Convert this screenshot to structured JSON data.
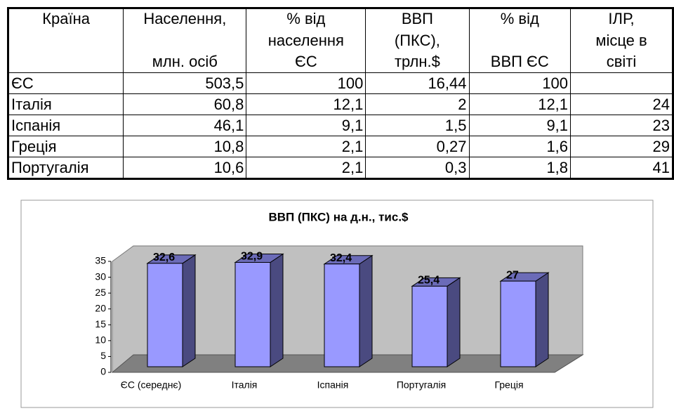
{
  "table": {
    "header": [
      [
        "Країна"
      ],
      [
        "Населення,",
        "млн. осіб"
      ],
      [
        "% від",
        "населення",
        "ЄС"
      ],
      [
        "ВВП",
        "(ПКС),",
        "трлн.$"
      ],
      [
        "% від",
        "ВВП ЄС"
      ],
      [
        "ІЛР,",
        "місце в",
        "світі"
      ]
    ],
    "rows": [
      [
        "ЄС",
        "503,5",
        "100",
        "16,44",
        "100",
        null
      ],
      [
        "Італія",
        "60,8",
        "12,1",
        "2",
        "12,1",
        "24"
      ],
      [
        "Іспанія",
        "46,1",
        "9,1",
        "1,5",
        "9,1",
        "23"
      ],
      [
        "Греція",
        "10,8",
        "2,1",
        "0,27",
        "1,6",
        "29"
      ],
      [
        "Португалія",
        "10,6",
        "2,1",
        "0,3",
        "1,8",
        "41"
      ]
    ]
  },
  "chart_data": {
    "type": "bar3d",
    "title": "ВВП (ПКС) на д.н., тис.$",
    "categories": [
      "ЄС (середнє)",
      "Італія",
      "Іспанія",
      "Португалія",
      "Греція"
    ],
    "values": [
      32.6,
      32.9,
      32.4,
      25.4,
      27
    ],
    "value_labels": [
      "32,6",
      "32,9",
      "32,4",
      "25,4",
      "27"
    ],
    "color": "#9999ff",
    "ylim": [
      0,
      35
    ],
    "yticks": [
      0,
      5,
      10,
      15,
      20,
      25,
      30,
      35
    ]
  }
}
